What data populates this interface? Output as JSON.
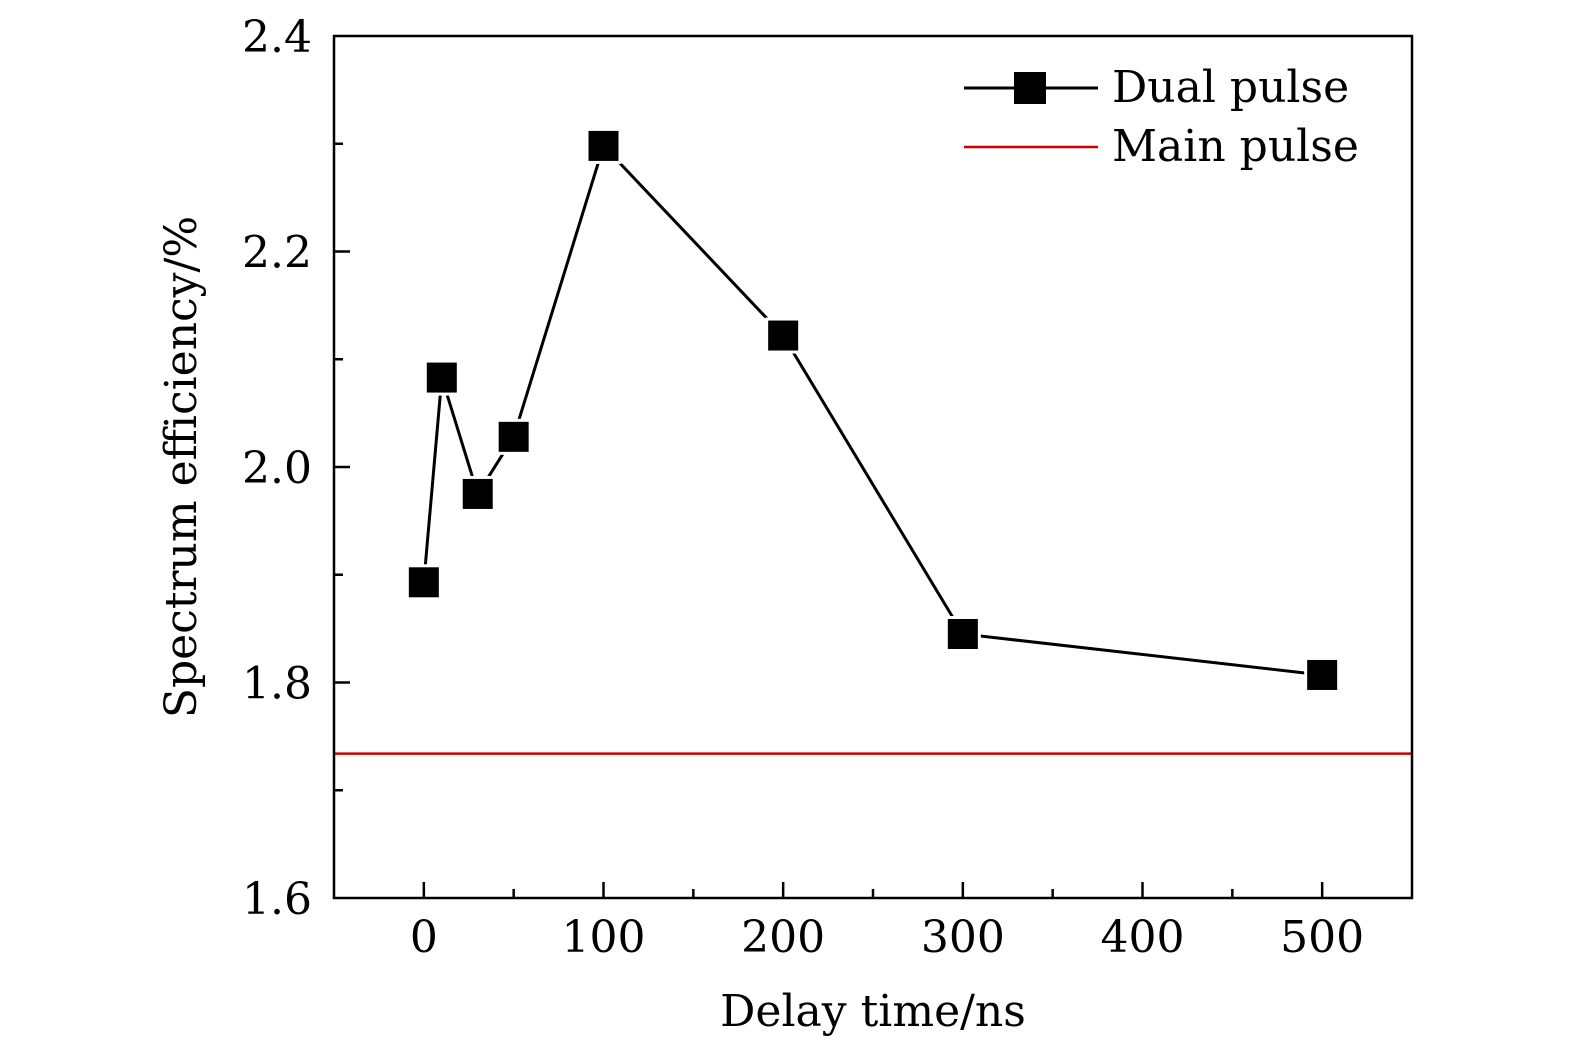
{
  "chart_data": {
    "type": "line",
    "title": "",
    "xlabel": "Delay time/ns",
    "ylabel": "Spectrum efficiency/%",
    "xlim": [
      -50,
      550
    ],
    "ylim": [
      1.6,
      2.4
    ],
    "x_ticks": [
      0,
      100,
      200,
      300,
      400,
      500
    ],
    "x_tick_labels": [
      "0",
      "100",
      "200",
      "300",
      "400",
      "500"
    ],
    "y_ticks": [
      1.6,
      1.8,
      2.0,
      2.2,
      2.4
    ],
    "y_tick_labels": [
      "1.6",
      "1.8",
      "2.0",
      "2.2",
      "2.4"
    ],
    "grid": false,
    "legend_position": "top-right",
    "series": [
      {
        "name": "Dual pulse",
        "color": "#000000",
        "marker": "square",
        "x": [
          0,
          10,
          30,
          50,
          100,
          200,
          300,
          500
        ],
        "y": [
          1.893,
          2.083,
          1.975,
          2.028,
          2.298,
          2.122,
          1.845,
          1.807
        ]
      },
      {
        "name": "Main pulse",
        "color": "#cc0000",
        "type": "hline",
        "y": 1.734
      }
    ]
  }
}
